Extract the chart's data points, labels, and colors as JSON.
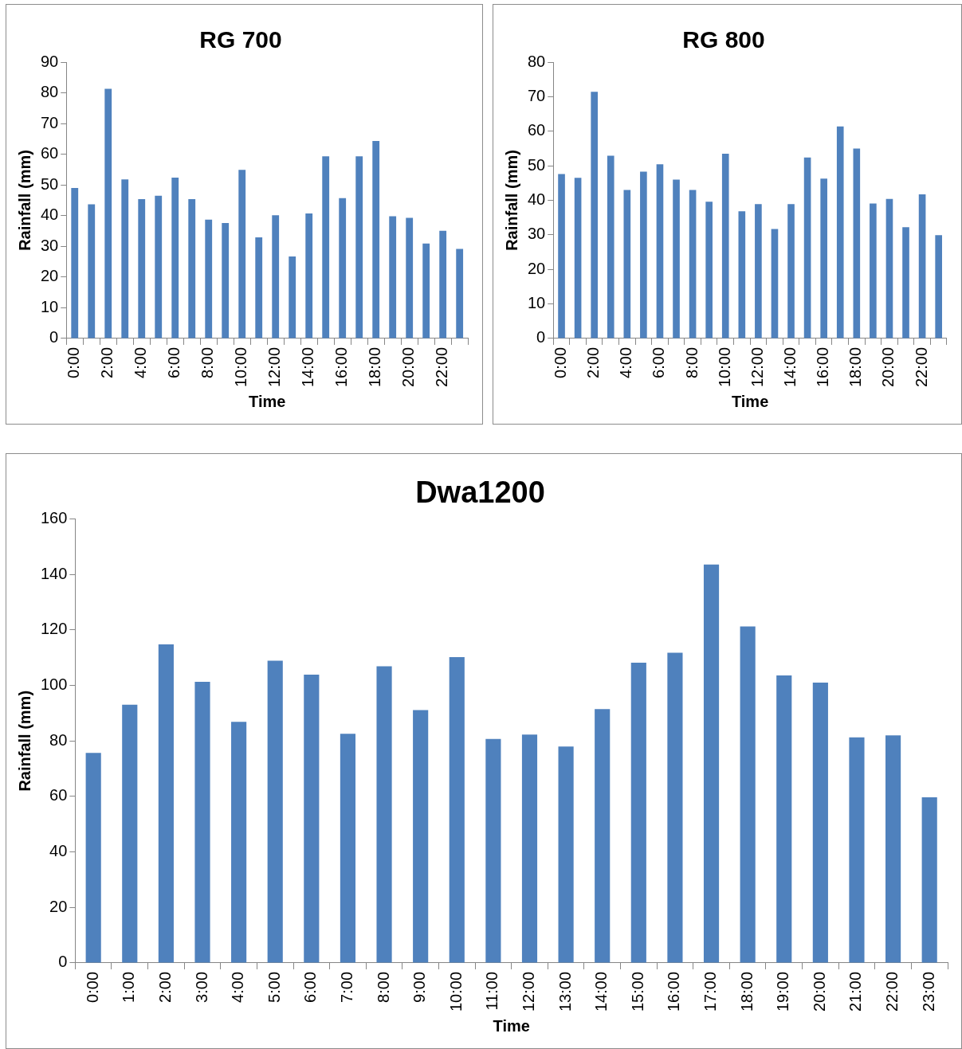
{
  "chart_data": [
    {
      "type": "bar",
      "title": "RG 700",
      "xlabel": "Time",
      "ylabel": "Rainfall (mm)",
      "color": "#4f81bd",
      "categories": [
        "0:00",
        null,
        "2:00",
        null,
        "4:00",
        null,
        "6:00",
        null,
        "8:00",
        null,
        "10:00",
        null,
        "12:00",
        null,
        "14:00",
        null,
        "16:00",
        null,
        "18:00",
        null,
        "20:00",
        null,
        "22:00",
        null
      ],
      "values": [
        49,
        43.7,
        81.3,
        51.8,
        45.4,
        46.5,
        52.4,
        45.4,
        38.7,
        37.6,
        54.9,
        32.9,
        40.1,
        26.7,
        40.7,
        59.3,
        45.7,
        59.3,
        64.3,
        39.8,
        39.3,
        30.9,
        35.1,
        29.2
      ],
      "ylim": [
        0,
        90
      ],
      "yticks": [
        0,
        10,
        20,
        30,
        40,
        50,
        60,
        70,
        80,
        90
      ]
    },
    {
      "type": "bar",
      "title": "RG 800",
      "xlabel": "Time",
      "ylabel": "Rainfall (mm)",
      "color": "#4f81bd",
      "categories": [
        "0:00",
        null,
        "2:00",
        null,
        "4:00",
        null,
        "6:00",
        null,
        "8:00",
        null,
        "10:00",
        null,
        "12:00",
        null,
        "14:00",
        null,
        "16:00",
        null,
        "18:00",
        null,
        "20:00",
        null,
        "22:00",
        null
      ],
      "values": [
        47.6,
        46.5,
        71.4,
        52.9,
        43,
        48.3,
        50.4,
        46,
        43,
        39.6,
        53.5,
        36.8,
        38.9,
        31.7,
        38.9,
        52.4,
        46.3,
        61.4,
        55,
        39.1,
        40.4,
        32.2,
        41.7,
        29.9
      ],
      "ylim": [
        0,
        80
      ],
      "yticks": [
        0,
        10,
        20,
        30,
        40,
        50,
        60,
        70,
        80
      ]
    },
    {
      "type": "bar",
      "title": "Dwa1200",
      "xlabel": "Time",
      "ylabel": "Rainfall (mm)",
      "color": "#4f81bd",
      "categories": [
        "0:00",
        "1:00",
        "2:00",
        "3:00",
        "4:00",
        "5:00",
        "6:00",
        "7:00",
        "8:00",
        "9:00",
        "10:00",
        "11:00",
        "12:00",
        "13:00",
        "14:00",
        "15:00",
        "16:00",
        "17:00",
        "18:00",
        "19:00",
        "20:00",
        "21:00",
        "22:00",
        "23:00"
      ],
      "values": [
        75.7,
        93.1,
        114.8,
        101.3,
        86.9,
        108.9,
        103.9,
        82.6,
        106.9,
        91.1,
        110.2,
        80.7,
        82.3,
        78,
        91.5,
        108.2,
        111.8,
        143.6,
        121.3,
        103.6,
        101,
        81.3,
        82,
        59.7
      ],
      "ylim": [
        0,
        160
      ],
      "yticks": [
        0,
        20,
        40,
        60,
        80,
        100,
        120,
        140,
        160
      ]
    }
  ]
}
